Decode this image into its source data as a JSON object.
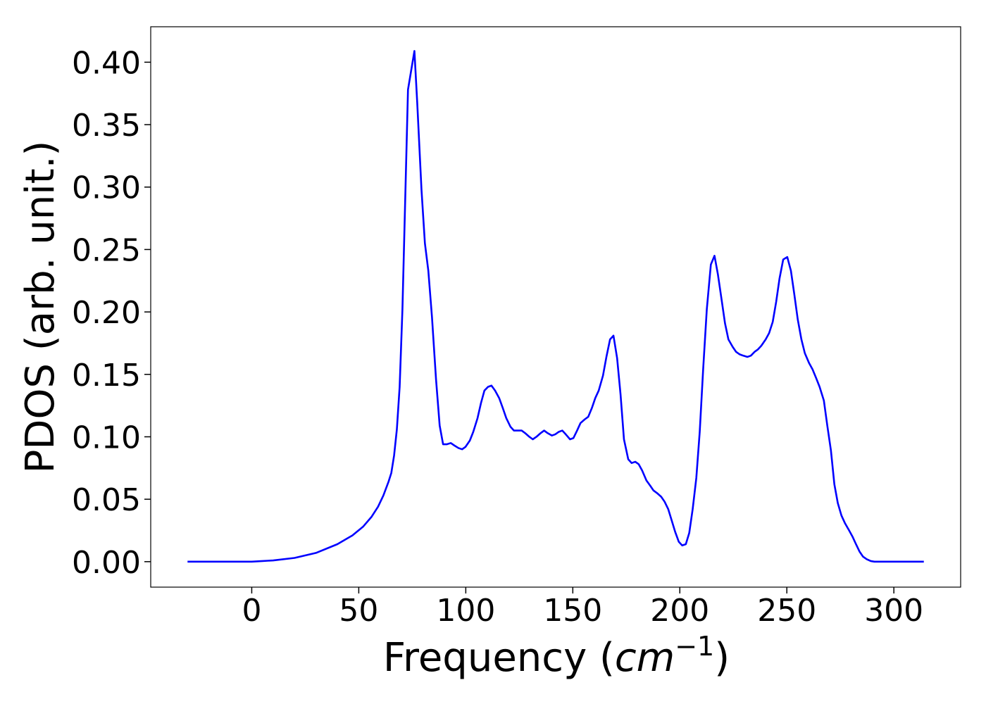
{
  "chart_data": {
    "type": "line",
    "xlabel": [
      "Frequency (",
      "cm",
      "−1",
      ")"
    ],
    "ylabel": "PDOS (arb. unit.)",
    "xlim": [
      -47.2,
      331.2
    ],
    "ylim": [
      -0.0204,
      0.4284
    ],
    "xticks": [
      0,
      50,
      100,
      150,
      200,
      250,
      300
    ],
    "yticks": [
      {
        "value": 0,
        "label": "0.00"
      },
      {
        "value": 0.05,
        "label": "0.05"
      },
      {
        "value": 0.1,
        "label": "0.10"
      },
      {
        "value": 0.15,
        "label": "0.15"
      },
      {
        "value": 0.2,
        "label": "0.20"
      },
      {
        "value": 0.25,
        "label": "0.25"
      },
      {
        "value": 0.3,
        "label": "0.30"
      },
      {
        "value": 0.35,
        "label": "0.35"
      },
      {
        "value": 0.4,
        "label": "0.40"
      }
    ],
    "grid": false,
    "series": [
      {
        "color": "#0000ff",
        "x": [
          -30,
          0,
          5,
          10,
          20,
          30,
          40,
          47,
          52,
          56,
          59,
          61.5,
          63.9,
          65.2,
          66.5,
          67.8,
          69.1,
          70.4,
          73.0,
          76.0,
          77.3,
          79.3,
          80.9,
          82.5,
          84.2,
          86.1,
          87.8,
          89.4,
          91.1,
          93.0,
          94.7,
          96.6,
          98.3,
          99.9,
          101.9,
          103.5,
          105.5,
          107.1,
          108.7,
          110.4,
          112.0,
          113.7,
          115.6,
          117.3,
          118.9,
          120.9,
          122.5,
          124.5,
          126.1,
          127.7,
          129.7,
          131.3,
          133.0,
          135.0,
          136.6,
          138.2,
          140.2,
          141.8,
          143.5,
          145.1,
          146.7,
          148.7,
          150.3,
          152.0,
          153.6,
          155.6,
          157.2,
          158.9,
          160.5,
          162.1,
          164.1,
          165.7,
          167.4,
          169.0,
          170.7,
          172.3,
          173.9,
          175.9,
          177.5,
          179.2,
          180.8,
          182.4,
          184.4,
          186.1,
          187.7,
          189.3,
          191.3,
          192.9,
          194.6,
          196.2,
          197.8,
          199.5,
          201.1,
          202.8,
          204.4,
          206.0,
          207.7,
          209.3,
          210.9,
          212.6,
          214.5,
          216.2,
          217.8,
          219.5,
          221.1,
          222.7,
          224.7,
          226.3,
          228.0,
          229.6,
          231.6,
          233.2,
          234.9,
          236.5,
          238.1,
          240.1,
          241.7,
          243.4,
          245.0,
          246.6,
          248.3,
          250.2,
          251.9,
          253.5,
          255.1,
          256.8,
          258.4,
          260.4,
          262.0,
          263.7,
          265.3,
          267.3,
          268.9,
          270.6,
          272.2,
          273.8,
          275.5,
          277.1,
          279.1,
          280.7,
          282.3,
          284.0,
          285.6,
          287.3,
          289.2,
          290.9,
          314
        ],
        "values": [
          0,
          0,
          0.0005,
          0.001,
          0.003,
          0.007,
          0.014,
          0.021,
          0.028,
          0.036,
          0.044,
          0.053,
          0.064,
          0.071,
          0.085,
          0.106,
          0.14,
          0.202,
          0.378,
          0.409,
          0.368,
          0.298,
          0.255,
          0.233,
          0.196,
          0.146,
          0.109,
          0.094,
          0.094,
          0.095,
          0.093,
          0.091,
          0.09,
          0.092,
          0.097,
          0.104,
          0.115,
          0.127,
          0.137,
          0.14,
          0.141,
          0.137,
          0.131,
          0.123,
          0.115,
          0.108,
          0.105,
          0.105,
          0.105,
          0.103,
          0.1,
          0.098,
          0.1,
          0.103,
          0.105,
          0.103,
          0.101,
          0.102,
          0.104,
          0.105,
          0.102,
          0.098,
          0.099,
          0.105,
          0.111,
          0.114,
          0.116,
          0.123,
          0.131,
          0.137,
          0.149,
          0.164,
          0.178,
          0.181,
          0.163,
          0.134,
          0.098,
          0.082,
          0.079,
          0.08,
          0.078,
          0.073,
          0.065,
          0.061,
          0.057,
          0.055,
          0.052,
          0.048,
          0.042,
          0.033,
          0.024,
          0.016,
          0.013,
          0.014,
          0.023,
          0.042,
          0.067,
          0.104,
          0.154,
          0.202,
          0.238,
          0.245,
          0.23,
          0.21,
          0.191,
          0.178,
          0.172,
          0.168,
          0.166,
          0.165,
          0.164,
          0.165,
          0.168,
          0.17,
          0.173,
          0.178,
          0.183,
          0.192,
          0.208,
          0.227,
          0.242,
          0.244,
          0.233,
          0.214,
          0.194,
          0.178,
          0.167,
          0.159,
          0.154,
          0.147,
          0.14,
          0.129,
          0.109,
          0.089,
          0.062,
          0.047,
          0.037,
          0.031,
          0.025,
          0.02,
          0.014,
          0.008,
          0.004,
          0.002,
          0.0005,
          0,
          0
        ]
      }
    ]
  }
}
